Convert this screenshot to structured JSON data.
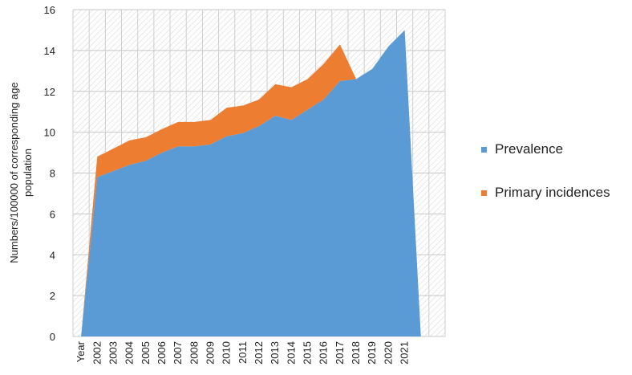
{
  "chart_data": {
    "type": "area",
    "stacked": true,
    "title": "",
    "xlabel": "",
    "ylabel": "Numbers/100000 of corresponding age population",
    "ylim": [
      0,
      16
    ],
    "yticks": [
      0,
      2,
      4,
      6,
      8,
      10,
      12,
      14,
      16
    ],
    "categories": [
      "Year",
      "2002",
      "2003",
      "2004",
      "2005",
      "2006",
      "2007",
      "2008",
      "2009",
      "2010",
      "2011",
      "2012",
      "2013",
      "2014",
      "2015",
      "2016",
      "2017",
      "2018",
      "2019",
      "2020",
      "2021",
      "",
      ""
    ],
    "series": [
      {
        "name": "Prevalence",
        "color": "#5B9BD5",
        "values": [
          0,
          7.8,
          8.1,
          8.4,
          8.6,
          9.0,
          9.3,
          9.3,
          9.4,
          9.8,
          9.95,
          10.3,
          10.8,
          10.6,
          11.1,
          11.6,
          12.5,
          12.6,
          13.1,
          14.2,
          15.0,
          0,
          null
        ]
      },
      {
        "name": "Primary incidences",
        "color": "#ED7D31",
        "values": [
          0,
          1.0,
          1.1,
          1.2,
          1.15,
          1.15,
          1.2,
          1.2,
          1.2,
          1.4,
          1.35,
          1.3,
          1.55,
          1.6,
          1.5,
          1.75,
          1.8,
          0,
          0,
          0,
          0,
          0,
          null
        ]
      }
    ],
    "grid": true,
    "legend_position": "right"
  },
  "legend": {
    "items": [
      {
        "label": "Prevalence",
        "color": "#5B9BD5"
      },
      {
        "label": "Primary incidences",
        "color": "#ED7D31"
      }
    ]
  }
}
